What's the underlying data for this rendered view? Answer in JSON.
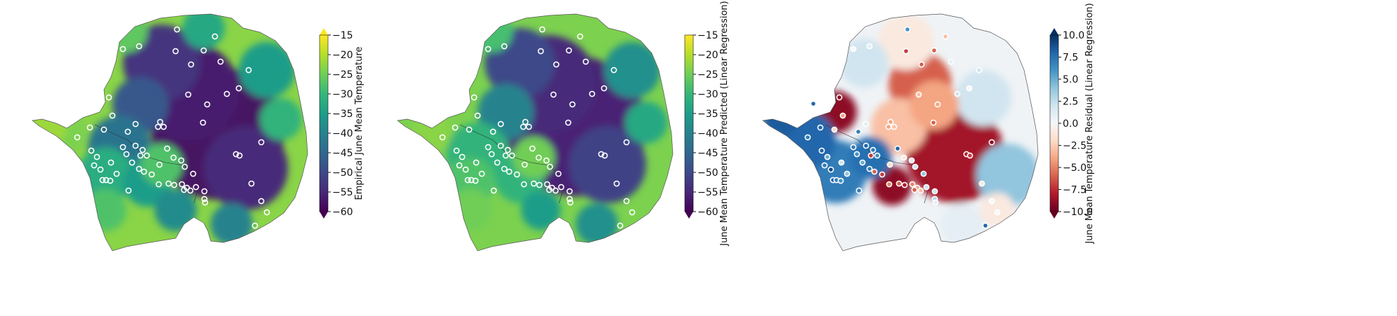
{
  "figure": {
    "panels": [
      {
        "id": "empirical",
        "colormap": "viridis",
        "colorbar": {
          "label": "Empirical June Mean Temperature",
          "min": -60,
          "max": -15,
          "ticks": [
            -15,
            -20,
            -25,
            -30,
            -35,
            -40,
            -45,
            -50,
            -55,
            -60
          ],
          "extend": "both"
        },
        "station_fill": "none"
      },
      {
        "id": "predicted",
        "colormap": "viridis",
        "colorbar": {
          "label": "June Mean Temperature Predicted (Linear Regression)",
          "min": -60,
          "max": -15,
          "ticks": [
            -15,
            -20,
            -25,
            -30,
            -35,
            -40,
            -45,
            -50,
            -55,
            -60
          ],
          "extend": "min"
        },
        "station_fill": "none"
      },
      {
        "id": "residual",
        "colormap": "RdBu",
        "colorbar": {
          "label": "June Mean Temperature Residual (Linear Regression)",
          "min": -10,
          "max": 10,
          "ticks": [
            10.0,
            7.5,
            5.0,
            2.5,
            0.0,
            -2.5,
            -5.0,
            -7.5,
            -10.0
          ],
          "extend": "both"
        },
        "station_fill": "residual"
      }
    ],
    "colors": {
      "viridis": [
        "#440154",
        "#482878",
        "#3e4989",
        "#31688e",
        "#26828e",
        "#1f9e89",
        "#35b779",
        "#6ece58",
        "#b5de2b",
        "#fde725"
      ],
      "rdbu": [
        "#67001f",
        "#b2182b",
        "#d6604d",
        "#f4a582",
        "#fddbc7",
        "#f7f7f7",
        "#d1e5f0",
        "#92c5de",
        "#4393c3",
        "#2166ac",
        "#053061"
      ]
    }
  }
}
